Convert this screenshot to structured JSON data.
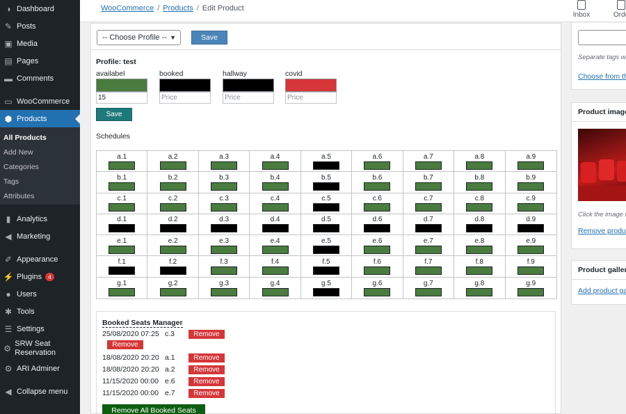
{
  "sidebar": {
    "items": [
      {
        "label": "Dashboard",
        "icon": "dashboard-icon",
        "glyph": "◑"
      },
      {
        "label": "Posts",
        "icon": "pin-icon",
        "glyph": "✎"
      },
      {
        "label": "Media",
        "icon": "media-icon",
        "glyph": "▣"
      },
      {
        "label": "Pages",
        "icon": "pages-icon",
        "glyph": "▤"
      },
      {
        "label": "Comments",
        "icon": "comment-icon",
        "glyph": "▬"
      },
      {
        "label": "WooCommerce",
        "icon": "woocommerce-icon",
        "glyph": "▭"
      },
      {
        "label": "Products",
        "icon": "box-icon",
        "glyph": "⬢"
      },
      {
        "label": "Analytics",
        "icon": "bar-chart-icon",
        "glyph": "▮"
      },
      {
        "label": "Marketing",
        "icon": "megaphone-icon",
        "glyph": "◀"
      },
      {
        "label": "Appearance",
        "icon": "brush-icon",
        "glyph": "✐"
      },
      {
        "label": "Plugins",
        "icon": "plug-icon",
        "glyph": "⚡",
        "badge": "4"
      },
      {
        "label": "Users",
        "icon": "user-icon",
        "glyph": "●"
      },
      {
        "label": "Tools",
        "icon": "wrench-icon",
        "glyph": "✱"
      },
      {
        "label": "Settings",
        "icon": "settings-icon",
        "glyph": "☰"
      },
      {
        "label": "SRW Seat Reservation",
        "icon": "gear-icon",
        "glyph": "⚙"
      },
      {
        "label": "ARI Adminer",
        "icon": "gear-icon",
        "glyph": "⚙"
      },
      {
        "label": "Collapse menu",
        "icon": "collapse-icon",
        "glyph": "◀"
      }
    ],
    "products_submenu": [
      "All Products",
      "Add New",
      "Categories",
      "Tags",
      "Attributes"
    ]
  },
  "topbar": {
    "breadcrumb": [
      "WooCommerce",
      "Products",
      "Edit Product"
    ],
    "inbox_label": "Inbox",
    "orders_label": "Orde"
  },
  "profile_bar": {
    "select_value": "-- Choose Profile --",
    "save_label": "Save"
  },
  "profile": {
    "title": "Profile: test",
    "columns": [
      {
        "label": "availabel",
        "color": "#4a7c3f",
        "value": "15",
        "placeholder": "Price"
      },
      {
        "label": "booked",
        "color": "#000000",
        "value": "",
        "placeholder": "Price"
      },
      {
        "label": "hallway",
        "color": "#000000",
        "value": "",
        "placeholder": "Price"
      },
      {
        "label": "covid",
        "color": "#d63638",
        "value": "",
        "placeholder": "Price"
      }
    ],
    "save_label": "Save"
  },
  "schedules_label": "Schedules",
  "seat_status_colors": {
    "available": "#4a7c3f",
    "booked": "#000000"
  },
  "seats": {
    "rows": [
      "a",
      "b",
      "c",
      "d",
      "e",
      "f",
      "g"
    ],
    "columns": 9,
    "status": [
      [
        "available",
        "available",
        "available",
        "available",
        "booked",
        "available",
        "available",
        "available",
        "available"
      ],
      [
        "available",
        "available",
        "available",
        "available",
        "booked",
        "available",
        "available",
        "available",
        "available"
      ],
      [
        "available",
        "available",
        "available",
        "available",
        "booked",
        "available",
        "available",
        "available",
        "available"
      ],
      [
        "booked",
        "booked",
        "booked",
        "booked",
        "booked",
        "booked",
        "booked",
        "booked",
        "booked"
      ],
      [
        "available",
        "available",
        "available",
        "available",
        "booked",
        "available",
        "available",
        "available",
        "available"
      ],
      [
        "booked",
        "booked",
        "available",
        "available",
        "booked",
        "available",
        "available",
        "available",
        "available"
      ],
      [
        "available",
        "available",
        "available",
        "available",
        "booked",
        "available",
        "available",
        "available",
        "available"
      ]
    ]
  },
  "booked_manager": {
    "title": "Booked Seats Manager",
    "entries": [
      {
        "date": "25/08/2020 07:25",
        "seat": "c.3"
      },
      {
        "date": "18/08/2020 20:20",
        "seat": "a.1"
      },
      {
        "date": "18/08/2020 20:20",
        "seat": "a.2"
      },
      {
        "date": "11/15/2020 00:00",
        "seat": "e.6"
      },
      {
        "date": "11/15/2020 00:00",
        "seat": "e.7"
      }
    ],
    "remove_label": "Remove",
    "remove_all_label": "Remove All Booked Seats"
  },
  "right_panel": {
    "tags_hint": "Separate tags wi",
    "tags_link": "Choose from the",
    "product_image_title": "Product image",
    "product_image_hint": "Click the image t",
    "remove_image_link": "Remove produc",
    "gallery_title": "Product gallery",
    "gallery_link": "Add product ga"
  }
}
